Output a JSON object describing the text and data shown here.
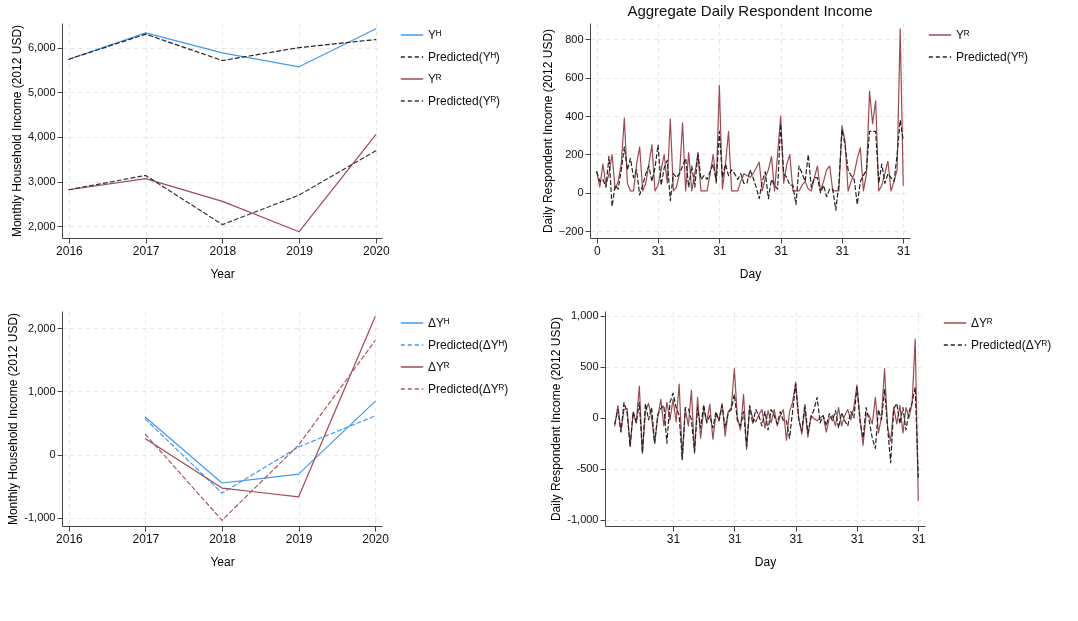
{
  "chart_data": [
    {
      "type": "line",
      "xlabel": "Year",
      "ylabel": "Monthly Household Income (2012 USD)",
      "xlim": [
        2015.91,
        2020.08
      ],
      "xticks": [
        2016,
        2017,
        2018,
        2019,
        2020
      ],
      "ylim": [
        1740,
        6550
      ],
      "yticks": [
        {
          "value": 2000,
          "label": "2,000"
        },
        {
          "value": 3000,
          "label": "3,000"
        },
        {
          "value": 4000,
          "label": "4,000"
        },
        {
          "value": 5000,
          "label": "5,000"
        },
        {
          "value": 6000,
          "label": "6,000"
        }
      ],
      "grid": true,
      "legend": "right",
      "x": [
        2016,
        2017,
        2018,
        2019,
        2020
      ],
      "series": [
        {
          "name": "Yᴴ",
          "color": "#3d9bf5",
          "line_style": "solid",
          "values": [
            5740,
            6330,
            5880,
            5570,
            6420
          ]
        },
        {
          "name": "Predicted(Yᴴ)",
          "color": "#222222",
          "line_style": "dashed",
          "values": [
            5740,
            6300,
            5710,
            6000,
            6180
          ]
        },
        {
          "name": "Yᴿ",
          "color": "#9e4a52",
          "line_style": "solid",
          "values": [
            2820,
            3070,
            2560,
            1880,
            4050
          ]
        },
        {
          "name": "Predicted(Yᴿ)",
          "color": "#333333",
          "line_style": "dashed",
          "values": [
            2820,
            3140,
            2040,
            2700,
            3690
          ]
        }
      ]
    },
    {
      "type": "line",
      "title": "Aggregate Daily Respondent Income",
      "xlabel": "Day",
      "ylabel": "Daily Respondent Income (2012 USD)",
      "ylim": [
        -235,
        885
      ],
      "yticks": [
        -200,
        0,
        200,
        400,
        600,
        800
      ],
      "grid": true,
      "legend": "right",
      "categories": [
        "0",
        null,
        null,
        null,
        null,
        null,
        null,
        null,
        null,
        null,
        null,
        null,
        null,
        null,
        null,
        null,
        null,
        null,
        null,
        null,
        "31",
        null,
        null,
        null,
        null,
        null,
        null,
        null,
        null,
        null,
        null,
        null,
        null,
        null,
        null,
        null,
        null,
        null,
        null,
        null,
        "31",
        null,
        null,
        null,
        null,
        null,
        null,
        null,
        null,
        null,
        null,
        null,
        null,
        null,
        null,
        null,
        null,
        null,
        null,
        null,
        "31",
        null,
        null,
        null,
        null,
        null,
        null,
        null,
        null,
        null,
        null,
        null,
        null,
        null,
        null,
        null,
        null,
        null,
        null,
        null,
        "31",
        null,
        null,
        null,
        null,
        null,
        null,
        null,
        null,
        null,
        null,
        null,
        null,
        null,
        null,
        null,
        null,
        null,
        null,
        null,
        "31"
      ],
      "series": [
        {
          "name": "Yᴿ",
          "color": "#9e4a52",
          "line_style": "solid",
          "values": [
            110,
            30,
            150,
            40,
            100,
            200,
            20,
            60,
            150,
            390,
            50,
            10,
            10,
            150,
            240,
            10,
            50,
            150,
            250,
            10,
            40,
            120,
            200,
            50,
            385,
            10,
            30,
            100,
            365,
            10,
            210,
            10,
            100,
            200,
            10,
            10,
            10,
            100,
            200,
            50,
            560,
            20,
            150,
            320,
            10,
            10,
            10,
            60,
            100,
            90,
            80,
            100,
            130,
            160,
            10,
            80,
            120,
            190,
            10,
            200,
            400,
            50,
            150,
            200,
            10,
            10,
            10,
            40,
            60,
            20,
            10,
            80,
            140,
            10,
            60,
            120,
            140,
            10,
            10,
            10,
            350,
            270,
            10,
            60,
            100,
            180,
            235,
            10,
            100,
            530,
            360,
            480,
            10,
            40,
            100,
            165,
            10,
            60,
            120,
            855,
            40
          ]
        },
        {
          "name": "Predicted(Yᴿ)",
          "color": "#222222",
          "line_style": "dashed",
          "values": [
            110,
            60,
            70,
            30,
            190,
            -70,
            40,
            20,
            120,
            240,
            120,
            180,
            80,
            120,
            -10,
            40,
            100,
            140,
            60,
            130,
            250,
            40,
            130,
            170,
            -40,
            100,
            80,
            100,
            140,
            180,
            30,
            140,
            30,
            210,
            70,
            90,
            70,
            110,
            150,
            60,
            320,
            80,
            150,
            90,
            120,
            100,
            70,
            100,
            50,
            50,
            120,
            80,
            30,
            -30,
            60,
            110,
            -30,
            70,
            40,
            20,
            360,
            100,
            80,
            40,
            40,
            -60,
            140,
            100,
            60,
            200,
            30,
            80,
            80,
            0,
            40,
            -20,
            20,
            20,
            -90,
            50,
            330,
            250,
            120,
            90,
            70,
            -60,
            60,
            90,
            120,
            320,
            320,
            320,
            50,
            150,
            50,
            100,
            80,
            60,
            200,
            380,
            270
          ]
        }
      ]
    },
    {
      "type": "line",
      "xlabel": "Year",
      "ylabel": "Monthly Household Income (2012 USD)",
      "xlim": [
        2015.91,
        2020.09
      ],
      "xticks": [
        2016,
        2017,
        2018,
        2019,
        2020
      ],
      "ylim": [
        -1130,
        2270
      ],
      "yticks": [
        {
          "value": -1000,
          "label": "-1,000"
        },
        0,
        {
          "value": 1000,
          "label": "1,000"
        },
        {
          "value": 2000,
          "label": "2,000"
        }
      ],
      "grid": true,
      "legend": "right",
      "x": [
        2017,
        2018,
        2019,
        2020
      ],
      "series": [
        {
          "name": "ΔYᴴ",
          "color": "#3d9bf5",
          "line_style": "solid",
          "values": [
            590,
            -450,
            -310,
            840
          ]
        },
        {
          "name": "Predicted(ΔYᴴ)",
          "color": "#3d9bf5",
          "line_style": "dashed",
          "values": [
            560,
            -610,
            120,
            610
          ]
        },
        {
          "name": "ΔYᴿ",
          "color": "#9e4a52",
          "line_style": "solid",
          "values": [
            250,
            -530,
            -670,
            2180
          ]
        },
        {
          "name": "Predicted(ΔYᴿ)",
          "color": "#a8575f",
          "line_style": "dashed",
          "values": [
            320,
            -1040,
            150,
            1800
          ]
        }
      ]
    },
    {
      "type": "line",
      "xlabel": "Day",
      "ylabel": "Daily Respondent Income (2012 USD)",
      "ylim": [
        -1060,
        1045
      ],
      "yticks": [
        {
          "value": -1000,
          "label": "-1,000"
        },
        -500,
        0,
        500,
        {
          "value": 1000,
          "label": "1,000"
        }
      ],
      "grid": true,
      "legend": "right",
      "categories": [
        null,
        null,
        null,
        null,
        null,
        null,
        null,
        null,
        null,
        null,
        null,
        null,
        null,
        null,
        null,
        null,
        null,
        null,
        null,
        null,
        "31",
        null,
        null,
        null,
        null,
        null,
        null,
        null,
        null,
        null,
        null,
        null,
        null,
        null,
        null,
        null,
        null,
        null,
        null,
        null,
        "31",
        null,
        null,
        null,
        null,
        null,
        null,
        null,
        null,
        null,
        null,
        null,
        null,
        null,
        null,
        null,
        null,
        null,
        null,
        null,
        "31",
        null,
        null,
        null,
        null,
        null,
        null,
        null,
        null,
        null,
        null,
        null,
        null,
        null,
        null,
        null,
        null,
        null,
        null,
        null,
        "31",
        null,
        null,
        null,
        null,
        null,
        null,
        null,
        null,
        null,
        null,
        null,
        null,
        null,
        null,
        null,
        null,
        null,
        null,
        null,
        "31"
      ],
      "series": [
        {
          "name": "ΔYᴿ",
          "color": "#9e4a52",
          "line_style": "solid",
          "values": [
            null,
            -80,
            120,
            -130,
            80,
            90,
            -280,
            50,
            -50,
            310,
            -350,
            60,
            140,
            0,
            -250,
            0,
            180,
            -80,
            150,
            -20,
            180,
            -40,
            330,
            -400,
            90,
            -80,
            270,
            -350,
            200,
            -200,
            80,
            -40,
            130,
            -210,
            30,
            -20,
            140,
            -180,
            60,
            100,
            480,
            0,
            -120,
            230,
            -310,
            100,
            0,
            -40,
            30,
            80,
            -100,
            70,
            -50,
            80,
            -80,
            20,
            80,
            -220,
            60,
            150,
            350,
            0,
            -160,
            90,
            -190,
            20,
            -10,
            -30,
            0,
            20,
            -140,
            0,
            20,
            -80,
            100,
            -80,
            20,
            80,
            -20,
            100,
            320,
            0,
            -270,
            40,
            20,
            -60,
            200,
            -150,
            0,
            480,
            -100,
            -230,
            100,
            -60,
            120,
            -150,
            100,
            0,
            140,
            770,
            -810
          ]
        },
        {
          "name": "Predicted(ΔYᴿ)",
          "color": "#222222",
          "line_style": "dashed",
          "values": [
            null,
            -60,
            80,
            -140,
            150,
            50,
            -280,
            60,
            -50,
            150,
            -340,
            140,
            -20,
            100,
            -250,
            30,
            90,
            120,
            -250,
            150,
            240,
            100,
            20,
            -410,
            100,
            90,
            -20,
            -330,
            100,
            -100,
            130,
            -50,
            20,
            -100,
            60,
            -30,
            120,
            -100,
            50,
            80,
            230,
            -30,
            -80,
            60,
            -280,
            120,
            -60,
            80,
            20,
            -80,
            60,
            -120,
            80,
            20,
            -60,
            60,
            -30,
            -30,
            -200,
            60,
            330,
            -20,
            -130,
            130,
            -150,
            0,
            80,
            200,
            -50,
            20,
            -80,
            40,
            -30,
            70,
            -100,
            50,
            -30,
            -80,
            60,
            0,
            300,
            -40,
            -200,
            100,
            -30,
            -200,
            -300,
            80,
            -20,
            280,
            -100,
            -440,
            90,
            140,
            -60,
            100,
            -120,
            60,
            150,
            300,
            -580
          ]
        }
      ]
    }
  ]
}
